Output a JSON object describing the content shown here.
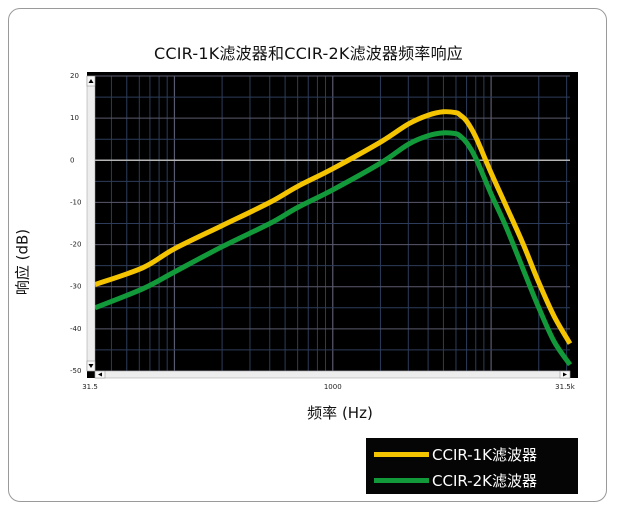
{
  "title": "CCIR-1K滤波器和CCIR-2K滤波器频率响应",
  "colors": {
    "plot_background": "#000000",
    "grid_major": "#5a5a6e",
    "grid_minor": "#2c3c5a",
    "zero_line": "#b4b4b4",
    "series_1k": "#f5c400",
    "series_2k": "#129a3a"
  },
  "chart_data": {
    "type": "line",
    "title": "CCIR-1K滤波器和CCIR-2K滤波器频率响应",
    "xlabel": "频率 (Hz)",
    "ylabel": "响应 (dB)",
    "xscale": "log",
    "xlim": [
      31.5,
      31500
    ],
    "ylim": [
      -50,
      20
    ],
    "x_ticks": [
      31.5,
      1000,
      31500
    ],
    "x_tick_labels": [
      "31.5",
      "1000",
      "31.5k"
    ],
    "y_ticks": [
      20,
      10,
      0,
      -10,
      -20,
      -30,
      -40,
      -50
    ],
    "y_tick_labels": [
      "20",
      "10",
      "0",
      "-10",
      "-20",
      "-30",
      "-40",
      "-50"
    ],
    "grid": true,
    "legend_position": "bottom-right",
    "series": [
      {
        "name": "CCIR-1K滤波器",
        "color": "#f5c400",
        "x": [
          31.5,
          63,
          100,
          200,
          400,
          600,
          1000,
          2000,
          3000,
          4000,
          5000,
          6000,
          6300,
          7000,
          8000,
          10000,
          12500,
          16000,
          20000,
          25000,
          31500
        ],
        "y": [
          -29.5,
          -25.5,
          -21,
          -15.5,
          -10,
          -6.2,
          -2,
          4.3,
          8.6,
          10.7,
          11.5,
          11.3,
          10.9,
          9.3,
          5.5,
          -3,
          -11,
          -20,
          -29,
          -37,
          -43.5
        ]
      },
      {
        "name": "CCIR-2K滤波器",
        "color": "#129a3a",
        "x": [
          31.5,
          63,
          100,
          200,
          400,
          600,
          1000,
          2000,
          3000,
          4000,
          5000,
          6000,
          6300,
          7000,
          8000,
          10000,
          12500,
          16000,
          20000,
          25000,
          31500
        ],
        "y": [
          -35,
          -30.5,
          -26.5,
          -20.5,
          -15,
          -11.2,
          -7,
          -0.7,
          3.8,
          5.8,
          6.5,
          6.3,
          5.9,
          4.2,
          0.5,
          -8,
          -16,
          -26,
          -35,
          -43,
          -48.5
        ]
      }
    ]
  }
}
